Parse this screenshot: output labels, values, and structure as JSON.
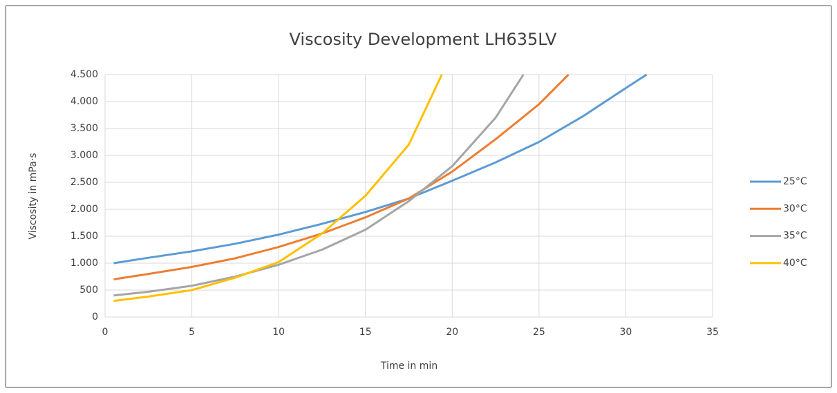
{
  "chart_data": {
    "type": "line",
    "title": "Viscosity Development LH635LV",
    "x_label": "Time in min",
    "y_label": "Viscosity in mPa·s",
    "xlim": [
      0,
      35
    ],
    "xticks": [
      0,
      5,
      10,
      15,
      20,
      25,
      30,
      35
    ],
    "ylim": [
      0,
      4500
    ],
    "yticks": [
      0,
      500,
      {
        "value": 1000,
        "label": "1.000"
      },
      {
        "value": 1500,
        "label": "1.500"
      },
      {
        "value": 2000,
        "label": "2.000"
      },
      {
        "value": 2500,
        "label": "2.500"
      },
      {
        "value": 3000,
        "label": "3.000"
      },
      {
        "value": 3500,
        "label": "3.500"
      },
      {
        "value": 4000,
        "label": "4.000"
      },
      {
        "value": 4500,
        "label": "4.500"
      }
    ],
    "grid": true,
    "legend": "right",
    "series": [
      {
        "name": "25°C",
        "color": "#5b9bd5",
        "x": [
          0.5,
          2.5,
          5,
          7.5,
          10,
          12.5,
          15,
          17.5,
          20,
          22.5,
          25,
          27.5,
          30,
          31.2
        ],
        "values": [
          1000,
          1100,
          1220,
          1360,
          1530,
          1730,
          1950,
          2200,
          2530,
          2870,
          3250,
          3720,
          4250,
          4500
        ]
      },
      {
        "name": "30°C",
        "color": "#ed7d31",
        "x": [
          0.5,
          2.5,
          5,
          7.5,
          10,
          12.5,
          15,
          17.5,
          20,
          22.5,
          25,
          26.7
        ],
        "values": [
          700,
          800,
          930,
          1090,
          1300,
          1550,
          1850,
          2200,
          2700,
          3300,
          3950,
          4500
        ]
      },
      {
        "name": "35°C",
        "color": "#a5a5a5",
        "x": [
          0.5,
          2.5,
          5,
          7.5,
          10,
          12.5,
          15,
          17.5,
          20,
          22.5,
          24.1
        ],
        "values": [
          400,
          470,
          580,
          750,
          970,
          1250,
          1620,
          2150,
          2800,
          3700,
          4500
        ]
      },
      {
        "name": "40°C",
        "color": "#ffc000",
        "x": [
          0.5,
          2.5,
          5,
          7.5,
          10,
          12.5,
          15,
          17.5,
          19.4
        ],
        "values": [
          300,
          380,
          500,
          730,
          1020,
          1550,
          2250,
          3200,
          4500
        ]
      }
    ]
  }
}
